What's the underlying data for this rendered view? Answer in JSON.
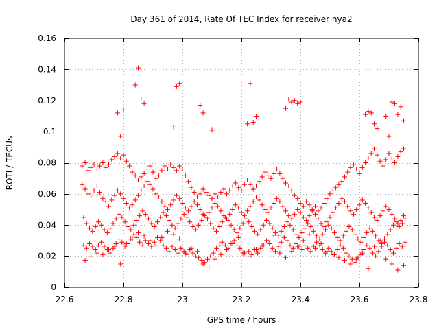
{
  "chart_data": {
    "type": "scatter",
    "title": "Day 361 of 2014, Rate Of TEC Index for receiver nya2",
    "xlabel": "GPS time / hours",
    "ylabel": "ROTI / TECUs",
    "xlim": [
      22.6,
      23.8
    ],
    "ylim": [
      0,
      0.16
    ],
    "xticks": [
      22.6,
      22.8,
      23.0,
      23.2,
      23.4,
      23.6,
      23.8
    ],
    "xtick_labels": [
      "22.6",
      "22.8",
      "23",
      "23.2",
      "23.4",
      "23.6",
      "23.8"
    ],
    "yticks": [
      0,
      0.02,
      0.04,
      0.06,
      0.08,
      0.1,
      0.12,
      0.14,
      0.16
    ],
    "ytick_labels": [
      "0",
      "0.02",
      "0.04",
      "0.06",
      "0.08",
      "0.1",
      "0.12",
      "0.14",
      "0.16"
    ],
    "grid": true,
    "marker": "+",
    "color": "#ff0000",
    "series": [
      {
        "name": "nya2",
        "x": [
          22.66,
          22.67,
          22.68,
          22.69,
          22.7,
          22.71,
          22.72,
          22.73,
          22.74,
          22.75,
          22.76,
          22.77,
          22.78,
          22.79,
          22.8,
          22.81,
          22.82,
          22.83,
          22.84,
          22.85,
          22.86,
          22.87,
          22.88,
          22.89,
          22.9,
          22.91,
          22.92,
          22.93,
          22.94,
          22.95,
          22.96,
          22.97,
          22.98,
          22.99,
          23.0,
          23.01,
          23.02,
          23.03,
          23.04,
          23.05,
          23.06,
          23.07,
          23.08,
          23.09,
          23.1,
          23.11,
          23.12,
          23.13,
          23.14,
          23.15,
          23.16,
          23.17,
          23.18,
          23.19,
          23.2,
          23.21,
          23.22,
          23.23,
          23.24,
          23.25,
          23.26,
          23.27,
          23.28,
          23.29,
          23.3,
          23.31,
          23.32,
          23.33,
          23.34,
          23.35,
          23.36,
          23.37,
          23.38,
          23.39,
          23.4,
          23.41,
          23.42,
          23.43,
          23.44,
          23.45,
          23.46,
          23.47,
          23.48,
          23.49,
          23.5,
          23.51,
          23.52,
          23.53,
          23.54,
          23.55,
          23.56,
          23.57,
          23.58,
          23.59,
          23.6,
          23.61,
          23.62,
          23.63,
          23.64,
          23.65,
          23.66,
          23.67,
          23.68,
          23.69,
          23.7,
          23.71,
          23.72,
          23.73,
          23.74,
          23.75,
          22.66,
          22.67,
          22.68,
          22.69,
          22.7,
          22.71,
          22.72,
          22.73,
          22.74,
          22.75,
          22.76,
          22.77,
          22.78,
          22.79,
          22.8,
          22.81,
          22.82,
          22.83,
          22.84,
          22.85,
          22.86,
          22.87,
          22.88,
          22.89,
          22.9,
          22.91,
          22.92,
          22.93,
          22.94,
          22.95,
          22.96,
          22.97,
          22.98,
          22.99,
          23.0,
          23.01,
          23.02,
          23.03,
          23.04,
          23.05,
          23.06,
          23.07,
          23.08,
          23.09,
          23.1,
          23.11,
          23.12,
          23.13,
          23.14,
          23.15,
          23.16,
          23.17,
          23.18,
          23.19,
          23.2,
          23.21,
          23.22,
          23.23,
          23.24,
          23.25,
          23.26,
          23.27,
          23.28,
          23.29,
          23.3,
          23.31,
          23.32,
          23.33,
          23.34,
          23.35,
          23.36,
          23.37,
          23.38,
          23.39,
          23.4,
          23.41,
          23.42,
          23.43,
          23.44,
          23.45,
          23.46,
          23.47,
          23.48,
          23.49,
          23.5,
          23.51,
          23.52,
          23.53,
          23.54,
          23.55,
          23.56,
          23.57,
          23.58,
          23.59,
          23.6,
          23.61,
          23.62,
          23.63,
          23.64,
          23.65,
          23.66,
          23.67,
          23.68,
          23.69,
          23.7,
          23.71,
          23.72,
          23.73,
          23.74,
          23.75,
          22.665,
          22.675,
          22.685,
          22.695,
          22.705,
          22.715,
          22.725,
          22.735,
          22.745,
          22.755,
          22.765,
          22.775,
          22.785,
          22.795,
          22.805,
          22.815,
          22.825,
          22.835,
          22.845,
          22.855,
          22.865,
          22.875,
          22.885,
          22.895,
          22.905,
          22.915,
          22.925,
          22.935,
          22.945,
          22.955,
          22.965,
          22.975,
          22.985,
          22.995,
          23.005,
          23.015,
          23.025,
          23.035,
          23.045,
          23.055,
          23.065,
          23.075,
          23.085,
          23.095,
          23.105,
          23.115,
          23.125,
          23.135,
          23.145,
          23.155,
          23.165,
          23.175,
          23.185,
          23.195,
          23.205,
          23.215,
          23.225,
          23.235,
          23.245,
          23.255,
          23.265,
          23.275,
          23.285,
          23.295,
          23.305,
          23.315,
          23.325,
          23.335,
          23.345,
          23.355,
          23.365,
          23.375,
          23.385,
          23.395,
          23.405,
          23.415,
          23.425,
          23.435,
          23.445,
          23.455,
          23.465,
          23.475,
          23.485,
          23.495,
          23.505,
          23.515,
          23.525,
          23.535,
          23.545,
          23.555,
          23.565,
          23.575,
          23.585,
          23.595,
          23.605,
          23.615,
          23.625,
          23.635,
          23.645,
          23.655,
          23.665,
          23.675,
          23.685,
          23.695,
          23.705,
          23.715,
          23.725,
          23.735,
          23.745,
          23.755,
          22.665,
          22.675,
          22.685,
          22.695,
          22.705,
          22.715,
          22.725,
          22.735,
          22.745,
          22.755,
          22.765,
          22.775,
          22.785,
          22.795,
          22.805,
          22.815,
          22.825,
          22.835,
          22.845,
          22.855,
          22.865,
          22.875,
          22.885,
          22.895,
          22.905,
          22.915,
          22.925,
          22.935,
          22.945,
          22.955,
          22.965,
          22.975,
          22.985,
          22.995,
          23.005,
          23.015,
          23.025,
          23.035,
          23.045,
          23.055,
          23.065,
          23.075,
          23.085,
          23.095,
          23.105,
          23.115,
          23.125,
          23.135,
          23.145,
          23.155,
          23.165,
          23.175,
          23.185,
          23.195,
          23.205,
          23.215,
          23.225,
          23.235,
          23.245,
          23.255,
          23.265,
          23.275,
          23.285,
          23.295,
          23.305,
          23.315,
          23.325,
          23.335,
          23.345,
          23.355,
          23.365,
          23.375,
          23.385,
          23.395,
          23.405,
          23.415,
          23.425,
          23.435,
          23.445,
          23.455,
          23.465,
          23.475,
          23.485,
          23.495,
          23.505,
          23.515,
          23.525,
          23.535,
          23.545,
          23.555,
          23.565,
          23.575,
          23.585,
          23.595,
          23.605,
          23.615,
          23.625,
          23.635,
          23.645,
          23.655,
          23.665,
          23.675,
          23.685,
          23.695,
          23.705,
          23.715,
          23.725,
          23.735,
          23.745,
          23.755,
          22.67,
          22.69,
          22.71,
          22.73,
          22.75,
          22.77,
          22.79,
          22.81,
          22.83,
          22.85,
          22.87,
          22.89,
          22.91,
          22.93,
          22.95,
          22.97,
          22.99,
          23.01,
          23.03,
          23.05,
          23.07,
          23.09,
          23.11,
          23.13,
          23.15,
          23.17,
          23.19,
          23.21,
          23.23,
          23.25,
          23.27,
          23.29,
          23.31,
          23.33,
          23.35,
          23.37,
          23.39,
          23.41,
          23.43,
          23.45,
          23.47,
          23.49,
          23.51,
          23.53,
          23.55,
          23.57,
          23.59,
          23.61,
          23.63,
          23.65,
          23.67,
          23.69,
          23.71,
          23.73,
          23.75,
          22.78,
          22.79,
          22.8,
          22.84,
          22.85,
          22.86,
          22.87,
          22.97,
          22.98,
          22.99,
          23.06,
          23.07,
          23.1,
          23.22,
          23.23,
          23.24,
          23.25,
          23.35,
          23.36,
          23.37,
          23.38,
          23.39,
          23.4,
          23.62,
          23.63,
          23.64,
          23.65,
          23.66,
          23.69,
          23.7,
          23.71,
          23.72,
          23.73,
          23.74,
          23.75
        ],
        "y": [
          0.078,
          0.08,
          0.075,
          0.077,
          0.079,
          0.076,
          0.078,
          0.08,
          0.077,
          0.079,
          0.082,
          0.084,
          0.086,
          0.083,
          0.085,
          0.081,
          0.078,
          0.074,
          0.072,
          0.069,
          0.071,
          0.073,
          0.076,
          0.078,
          0.074,
          0.07,
          0.072,
          0.075,
          0.078,
          0.076,
          0.079,
          0.077,
          0.075,
          0.078,
          0.076,
          0.072,
          0.068,
          0.064,
          0.061,
          0.058,
          0.06,
          0.063,
          0.061,
          0.059,
          0.057,
          0.06,
          0.058,
          0.061,
          0.063,
          0.06,
          0.062,
          0.065,
          0.067,
          0.064,
          0.062,
          0.066,
          0.069,
          0.066,
          0.063,
          0.065,
          0.068,
          0.071,
          0.074,
          0.072,
          0.07,
          0.073,
          0.076,
          0.073,
          0.07,
          0.067,
          0.065,
          0.062,
          0.059,
          0.057,
          0.054,
          0.052,
          0.055,
          0.053,
          0.05,
          0.052,
          0.049,
          0.051,
          0.054,
          0.057,
          0.06,
          0.062,
          0.064,
          0.066,
          0.068,
          0.071,
          0.074,
          0.077,
          0.079,
          0.076,
          0.073,
          0.077,
          0.08,
          0.083,
          0.086,
          0.089,
          0.085,
          0.081,
          0.078,
          0.082,
          0.086,
          0.083,
          0.08,
          0.084,
          0.087,
          0.089,
          0.066,
          0.063,
          0.06,
          0.058,
          0.062,
          0.065,
          0.061,
          0.057,
          0.055,
          0.052,
          0.056,
          0.059,
          0.062,
          0.06,
          0.057,
          0.054,
          0.051,
          0.053,
          0.056,
          0.059,
          0.062,
          0.065,
          0.068,
          0.066,
          0.063,
          0.06,
          0.058,
          0.055,
          0.052,
          0.05,
          0.053,
          0.056,
          0.059,
          0.057,
          0.054,
          0.051,
          0.049,
          0.052,
          0.055,
          0.053,
          0.05,
          0.047,
          0.045,
          0.048,
          0.051,
          0.054,
          0.052,
          0.049,
          0.046,
          0.044,
          0.047,
          0.05,
          0.053,
          0.051,
          0.048,
          0.046,
          0.049,
          0.052,
          0.055,
          0.058,
          0.056,
          0.053,
          0.05,
          0.048,
          0.051,
          0.054,
          0.057,
          0.055,
          0.052,
          0.049,
          0.046,
          0.044,
          0.047,
          0.05,
          0.048,
          0.045,
          0.043,
          0.046,
          0.049,
          0.047,
          0.044,
          0.041,
          0.039,
          0.042,
          0.045,
          0.048,
          0.051,
          0.054,
          0.057,
          0.055,
          0.052,
          0.049,
          0.047,
          0.05,
          0.053,
          0.056,
          0.054,
          0.051,
          0.048,
          0.045,
          0.043,
          0.046,
          0.049,
          0.052,
          0.05,
          0.047,
          0.044,
          0.041,
          0.043,
          0.046,
          0.045,
          0.041,
          0.038,
          0.036,
          0.039,
          0.042,
          0.04,
          0.037,
          0.035,
          0.038,
          0.041,
          0.044,
          0.047,
          0.045,
          0.042,
          0.039,
          0.037,
          0.04,
          0.043,
          0.046,
          0.049,
          0.047,
          0.044,
          0.041,
          0.039,
          0.042,
          0.045,
          0.048,
          0.046,
          0.043,
          0.04,
          0.038,
          0.041,
          0.044,
          0.047,
          0.045,
          0.042,
          0.039,
          0.037,
          0.04,
          0.043,
          0.046,
          0.044,
          0.041,
          0.038,
          0.036,
          0.039,
          0.042,
          0.045,
          0.043,
          0.04,
          0.037,
          0.035,
          0.038,
          0.041,
          0.044,
          0.042,
          0.039,
          0.036,
          0.034,
          0.037,
          0.04,
          0.043,
          0.041,
          0.038,
          0.035,
          0.033,
          0.036,
          0.039,
          0.042,
          0.04,
          0.037,
          0.034,
          0.032,
          0.035,
          0.038,
          0.041,
          0.039,
          0.036,
          0.033,
          0.031,
          0.034,
          0.037,
          0.04,
          0.038,
          0.035,
          0.032,
          0.03,
          0.033,
          0.036,
          0.039,
          0.037,
          0.034,
          0.031,
          0.029,
          0.032,
          0.035,
          0.038,
          0.036,
          0.033,
          0.03,
          0.028,
          0.031,
          0.034,
          0.037,
          0.04,
          0.042,
          0.039,
          0.041,
          0.044,
          0.027,
          0.025,
          0.028,
          0.026,
          0.024,
          0.027,
          0.029,
          0.026,
          0.024,
          0.022,
          0.025,
          0.028,
          0.031,
          0.029,
          0.026,
          0.028,
          0.031,
          0.034,
          0.032,
          0.029,
          0.027,
          0.03,
          0.028,
          0.026,
          0.029,
          0.032,
          0.03,
          0.027,
          0.025,
          0.023,
          0.026,
          0.024,
          0.022,
          0.025,
          0.023,
          0.021,
          0.024,
          0.022,
          0.02,
          0.019,
          0.017,
          0.016,
          0.018,
          0.02,
          0.022,
          0.025,
          0.027,
          0.029,
          0.027,
          0.025,
          0.028,
          0.03,
          0.027,
          0.025,
          0.022,
          0.02,
          0.023,
          0.021,
          0.024,
          0.022,
          0.025,
          0.027,
          0.03,
          0.028,
          0.025,
          0.023,
          0.026,
          0.029,
          0.032,
          0.03,
          0.027,
          0.025,
          0.028,
          0.026,
          0.024,
          0.027,
          0.025,
          0.023,
          0.026,
          0.029,
          0.027,
          0.024,
          0.022,
          0.025,
          0.023,
          0.021,
          0.024,
          0.027,
          0.025,
          0.022,
          0.02,
          0.018,
          0.016,
          0.019,
          0.021,
          0.024,
          0.027,
          0.025,
          0.022,
          0.02,
          0.023,
          0.026,
          0.029,
          0.027,
          0.024,
          0.022,
          0.025,
          0.028,
          0.026,
          0.029,
          0.017,
          0.02,
          0.022,
          0.021,
          0.024,
          0.026,
          0.015,
          0.028,
          0.031,
          0.035,
          0.033,
          0.03,
          0.027,
          0.032,
          0.036,
          0.034,
          0.031,
          0.022,
          0.025,
          0.023,
          0.015,
          0.013,
          0.018,
          0.021,
          0.024,
          0.028,
          0.032,
          0.022,
          0.02,
          0.024,
          0.027,
          0.03,
          0.033,
          0.022,
          0.019,
          0.023,
          0.026,
          0.03,
          0.034,
          0.025,
          0.028,
          0.023,
          0.021,
          0.019,
          0.017,
          0.015,
          0.018,
          0.022,
          0.012,
          0.026,
          0.03,
          0.018,
          0.015,
          0.011,
          0.014,
          0.112,
          0.097,
          0.114,
          0.13,
          0.141,
          0.121,
          0.118,
          0.103,
          0.129,
          0.131,
          0.117,
          0.112,
          0.101,
          0.105,
          0.131,
          0.106,
          0.11,
          0.115,
          0.121,
          0.119,
          0.12,
          0.118,
          0.119,
          0.111,
          0.113,
          0.112,
          0.105,
          0.102,
          0.11,
          0.097,
          0.119,
          0.118,
          0.111,
          0.116,
          0.107
        ]
      }
    ]
  }
}
